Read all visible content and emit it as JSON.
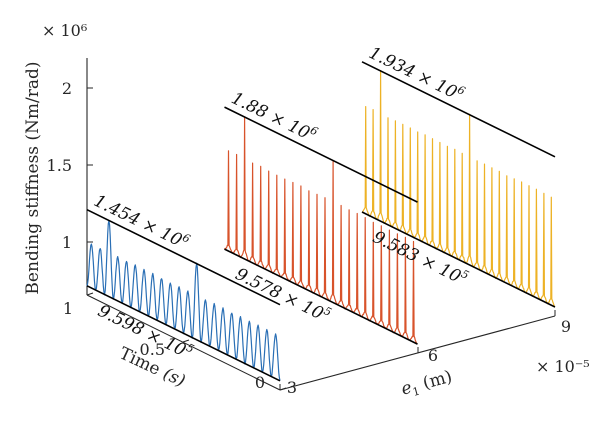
{
  "chart_data": {
    "type": "line",
    "view": "3d-waterfall",
    "y_multiplier": "× 10⁶",
    "x_multiplier": "× 10⁻⁵",
    "xlabel_var": "e",
    "xlabel_sub": "1",
    "xlabel_unit": " (m)",
    "ylabel": "Time",
    "ylabel_unit": "(s)",
    "zlabel": "Bending stiffness (Nm/rad)",
    "x_ticks": [
      "3",
      "6",
      "9"
    ],
    "y_ticks": [
      "0",
      "0.5",
      "1"
    ],
    "z_ticks": [
      "1",
      "1.5",
      "2"
    ],
    "xlim": [
      3,
      9
    ],
    "ylim": [
      0,
      1
    ],
    "zlim": [
      0.9,
      2.1
    ],
    "series": [
      {
        "e1": 3,
        "color": "#2a6fb5",
        "min": 0.9598,
        "max": 1.454,
        "min_label": "9.598 × 10",
        "min_exp": "5",
        "max_label": "1.454 × 10",
        "max_exp": "6"
      },
      {
        "e1": 6,
        "color": "#d8532b",
        "min": 0.9578,
        "max": 1.88,
        "min_label": "9.578 × 10",
        "min_exp": "5",
        "max_label": "1.88 × 10",
        "max_exp": "6"
      },
      {
        "e1": 9,
        "color": "#edb225",
        "min": 0.9583,
        "max": 1.934,
        "min_label": "9.583 × 10",
        "min_exp": "5",
        "max_label": "1.934 × 10",
        "max_exp": "6"
      }
    ]
  }
}
